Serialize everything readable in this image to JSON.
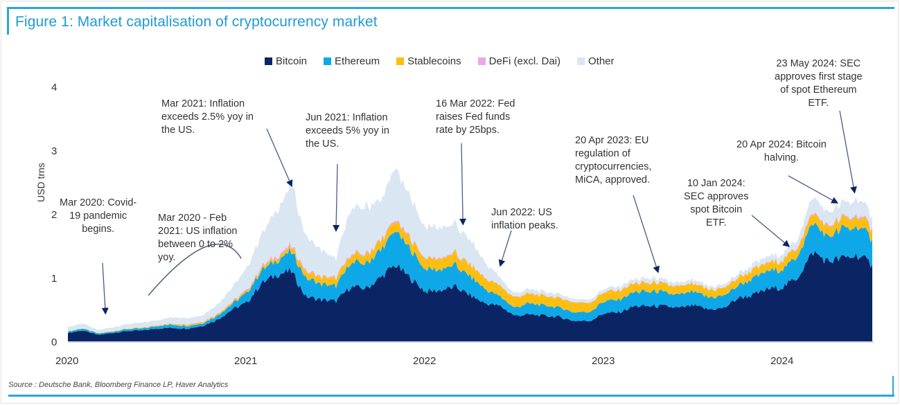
{
  "figure": {
    "title": "Figure 1: Market capitalisation of cryptocurrency market",
    "source": "Source : Deutsche Bank, Bloomberg Finance LP, Haver Analytics"
  },
  "chart_data": {
    "type": "area",
    "stacked": true,
    "title": "Figure 1: Market capitalisation of cryptocurrency market",
    "xlabel": "",
    "ylabel": "USD trns",
    "ylim": [
      0,
      4
    ],
    "yticks": [
      "0",
      "1",
      "2",
      "3",
      "4"
    ],
    "xticks": [
      "2020",
      "2021",
      "2022",
      "2023",
      "2024"
    ],
    "x_range": [
      2020.0,
      2024.5
    ],
    "legend_position": "top-center",
    "grid": false,
    "x": [
      2020.0,
      2020.08,
      2020.17,
      2020.25,
      2020.33,
      2020.42,
      2020.5,
      2020.58,
      2020.67,
      2020.75,
      2020.83,
      2020.92,
      2021.0,
      2021.08,
      2021.17,
      2021.25,
      2021.33,
      2021.42,
      2021.5,
      2021.58,
      2021.67,
      2021.75,
      2021.83,
      2021.92,
      2022.0,
      2022.08,
      2022.17,
      2022.25,
      2022.33,
      2022.42,
      2022.5,
      2022.58,
      2022.67,
      2022.75,
      2022.83,
      2022.92,
      2023.0,
      2023.08,
      2023.17,
      2023.25,
      2023.33,
      2023.42,
      2023.5,
      2023.58,
      2023.67,
      2023.75,
      2023.83,
      2023.92,
      2024.0,
      2024.08,
      2024.17,
      2024.25,
      2024.33,
      2024.42,
      2024.5
    ],
    "series": [
      {
        "name": "Bitcoin",
        "color": "#0b2463",
        "values": [
          0.13,
          0.17,
          0.1,
          0.13,
          0.16,
          0.17,
          0.2,
          0.21,
          0.2,
          0.24,
          0.33,
          0.5,
          0.6,
          0.9,
          1.05,
          1.1,
          0.7,
          0.65,
          0.63,
          0.85,
          0.83,
          1.0,
          1.2,
          0.98,
          0.78,
          0.8,
          0.85,
          0.72,
          0.6,
          0.55,
          0.4,
          0.42,
          0.4,
          0.38,
          0.32,
          0.32,
          0.44,
          0.45,
          0.55,
          0.55,
          0.55,
          0.52,
          0.56,
          0.5,
          0.52,
          0.68,
          0.72,
          0.82,
          0.85,
          1.0,
          1.4,
          1.25,
          1.3,
          1.35,
          1.2
        ]
      },
      {
        "name": "Ethereum",
        "color": "#0ea8e8",
        "values": [
          0.02,
          0.03,
          0.02,
          0.02,
          0.03,
          0.03,
          0.04,
          0.05,
          0.04,
          0.04,
          0.06,
          0.09,
          0.15,
          0.2,
          0.22,
          0.3,
          0.3,
          0.25,
          0.24,
          0.38,
          0.4,
          0.42,
          0.54,
          0.45,
          0.34,
          0.32,
          0.34,
          0.3,
          0.22,
          0.15,
          0.12,
          0.18,
          0.16,
          0.15,
          0.14,
          0.14,
          0.19,
          0.2,
          0.22,
          0.23,
          0.22,
          0.2,
          0.22,
          0.19,
          0.19,
          0.2,
          0.25,
          0.28,
          0.28,
          0.34,
          0.46,
          0.38,
          0.45,
          0.45,
          0.4
        ]
      },
      {
        "name": "Stablecoins",
        "color": "#fdbe12",
        "values": [
          0.005,
          0.005,
          0.007,
          0.008,
          0.01,
          0.011,
          0.012,
          0.014,
          0.02,
          0.02,
          0.022,
          0.025,
          0.03,
          0.04,
          0.05,
          0.07,
          0.1,
          0.11,
          0.12,
          0.12,
          0.13,
          0.14,
          0.15,
          0.16,
          0.17,
          0.17,
          0.18,
          0.18,
          0.17,
          0.16,
          0.16,
          0.15,
          0.15,
          0.15,
          0.15,
          0.14,
          0.14,
          0.14,
          0.13,
          0.13,
          0.13,
          0.13,
          0.12,
          0.12,
          0.12,
          0.12,
          0.13,
          0.13,
          0.14,
          0.14,
          0.15,
          0.15,
          0.16,
          0.16,
          0.16
        ]
      },
      {
        "name": "DeFi (excl. Dai)",
        "color": "#e8a8e8",
        "values": [
          0.0,
          0.0,
          0.0,
          0.0,
          0.0,
          0.0,
          0.002,
          0.005,
          0.008,
          0.008,
          0.008,
          0.01,
          0.015,
          0.02,
          0.025,
          0.03,
          0.02,
          0.015,
          0.015,
          0.02,
          0.02,
          0.02,
          0.025,
          0.02,
          0.015,
          0.015,
          0.015,
          0.012,
          0.008,
          0.006,
          0.006,
          0.007,
          0.006,
          0.006,
          0.005,
          0.005,
          0.007,
          0.007,
          0.008,
          0.008,
          0.007,
          0.006,
          0.007,
          0.006,
          0.006,
          0.007,
          0.008,
          0.01,
          0.012,
          0.013,
          0.02,
          0.02,
          0.02,
          0.025,
          0.02
        ]
      },
      {
        "name": "Other",
        "color": "#dbe6f3",
        "values": [
          0.07,
          0.08,
          0.05,
          0.06,
          0.07,
          0.08,
          0.08,
          0.1,
          0.1,
          0.1,
          0.15,
          0.22,
          0.35,
          0.5,
          0.7,
          0.95,
          0.55,
          0.4,
          0.3,
          0.7,
          0.75,
          0.6,
          0.8,
          0.62,
          0.48,
          0.47,
          0.45,
          0.38,
          0.25,
          0.12,
          0.06,
          0.07,
          0.06,
          0.06,
          0.05,
          0.05,
          0.05,
          0.06,
          0.06,
          0.07,
          0.06,
          0.05,
          0.06,
          0.05,
          0.05,
          0.06,
          0.08,
          0.09,
          0.1,
          0.12,
          0.25,
          0.2,
          0.22,
          0.25,
          0.18
        ]
      }
    ],
    "annotations": [
      {
        "text": "Mar 2020: Covid-\n19 pandemic\nbegins.",
        "target_x": 2020.21,
        "target_y": 0.45
      },
      {
        "text": "Mar 2020 - Feb\n2021: US inflation\nbetween 0 to 2%\nyoy.",
        "target_x": 2020.45,
        "target_y": 0.72,
        "curve_to_x": 2020.97,
        "curve_to_y": 1.3
      },
      {
        "text": "Mar 2021: Inflation\nexceeds 2.5% yoy in\nthe US.",
        "target_x": 2021.25,
        "target_y": 2.45
      },
      {
        "text": "Jun 2021: Inflation\nexceeds 5% yoy in\nthe US.",
        "target_x": 2021.5,
        "target_y": 1.75
      },
      {
        "text": "16 Mar 2022: Fed\nraises Fed funds\nrate by 25bps.",
        "target_x": 2022.21,
        "target_y": 1.85
      },
      {
        "text": "Jun 2022: US\ninflation peaks.",
        "target_x": 2022.42,
        "target_y": 1.2
      },
      {
        "text": "20 Apr 2023: EU\nregulation of\ncryptocurrencies,\nMiCA, approved.",
        "target_x": 2023.3,
        "target_y": 1.1
      },
      {
        "text": "10 Jan 2024:\nSEC approves\nspot Bitcoin\nETF.",
        "target_x": 2024.03,
        "target_y": 1.5
      },
      {
        "text": "20 Apr 2024: Bitcoin\nhalving.",
        "target_x": 2024.3,
        "target_y": 2.18
      },
      {
        "text": "23 May 2024: SEC\napproves first stage\nof spot Ethereum\nETF.",
        "target_x": 2024.4,
        "target_y": 2.35
      }
    ]
  }
}
